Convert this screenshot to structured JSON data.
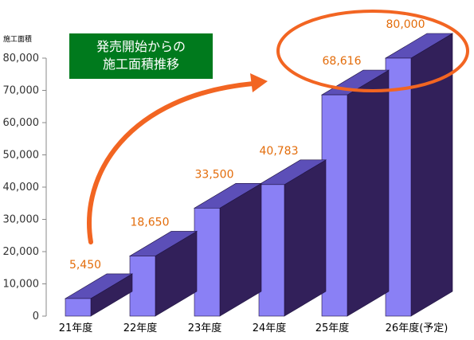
{
  "chart_data": {
    "type": "bar",
    "ylabel": "施工面積",
    "ylim": [
      0,
      80000
    ],
    "yticks": [
      "0",
      "10,000",
      "20,000",
      "30,000",
      "40,000",
      "50,000",
      "60,000",
      "70,000",
      "80,000"
    ],
    "categories": [
      "21年度",
      "22年度",
      "23年度",
      "24年度",
      "25年度",
      "26年度(予定)"
    ],
    "values": [
      5450,
      18650,
      33500,
      40783,
      68616,
      80000
    ],
    "value_labels": [
      "5,450",
      "18,650",
      "33,500",
      "40,783",
      "68,616",
      "80,000"
    ],
    "grid": false,
    "bar_style": "3d",
    "colors": {
      "bar_front": "#8a80f5",
      "bar_top": "#5c4fb8",
      "bar_side": "#32205a",
      "label": "#e36c0a",
      "arrow": "#f26522",
      "callout_bg": "#007a1d"
    }
  },
  "callout": {
    "line1": "発売開始からの",
    "line2": "施工面積推移"
  }
}
